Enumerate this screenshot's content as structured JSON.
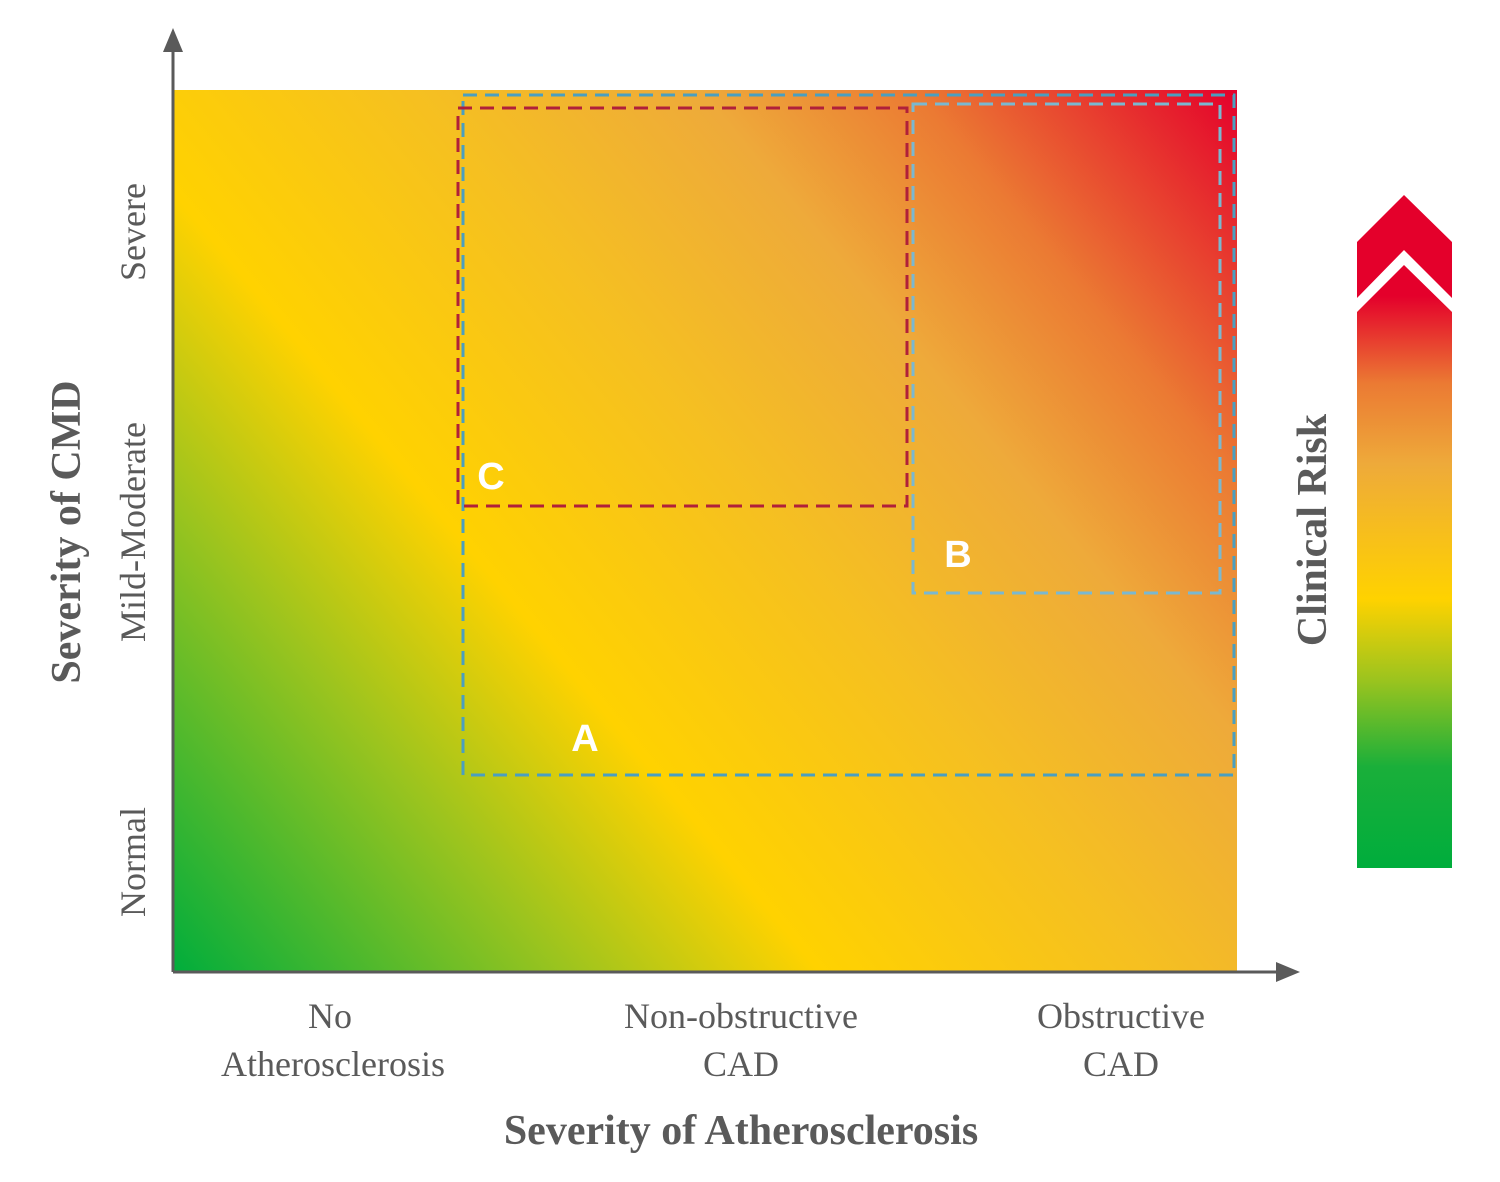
{
  "x_axis": {
    "title": "Severity of Atherosclerosis",
    "levels": [
      [
        "No",
        "Atherosclerosis"
      ],
      [
        "Non-obstructive",
        "CAD"
      ],
      [
        "Obstructive",
        "CAD"
      ]
    ]
  },
  "y_axis": {
    "title": "Severity of CMD",
    "levels": [
      "Normal",
      "Mild-Moderate",
      "Severe"
    ]
  },
  "regions": [
    {
      "label": "A"
    },
    {
      "label": "B"
    },
    {
      "label": "C"
    }
  ],
  "risk_scale": {
    "label": "Clinical Risk"
  }
}
